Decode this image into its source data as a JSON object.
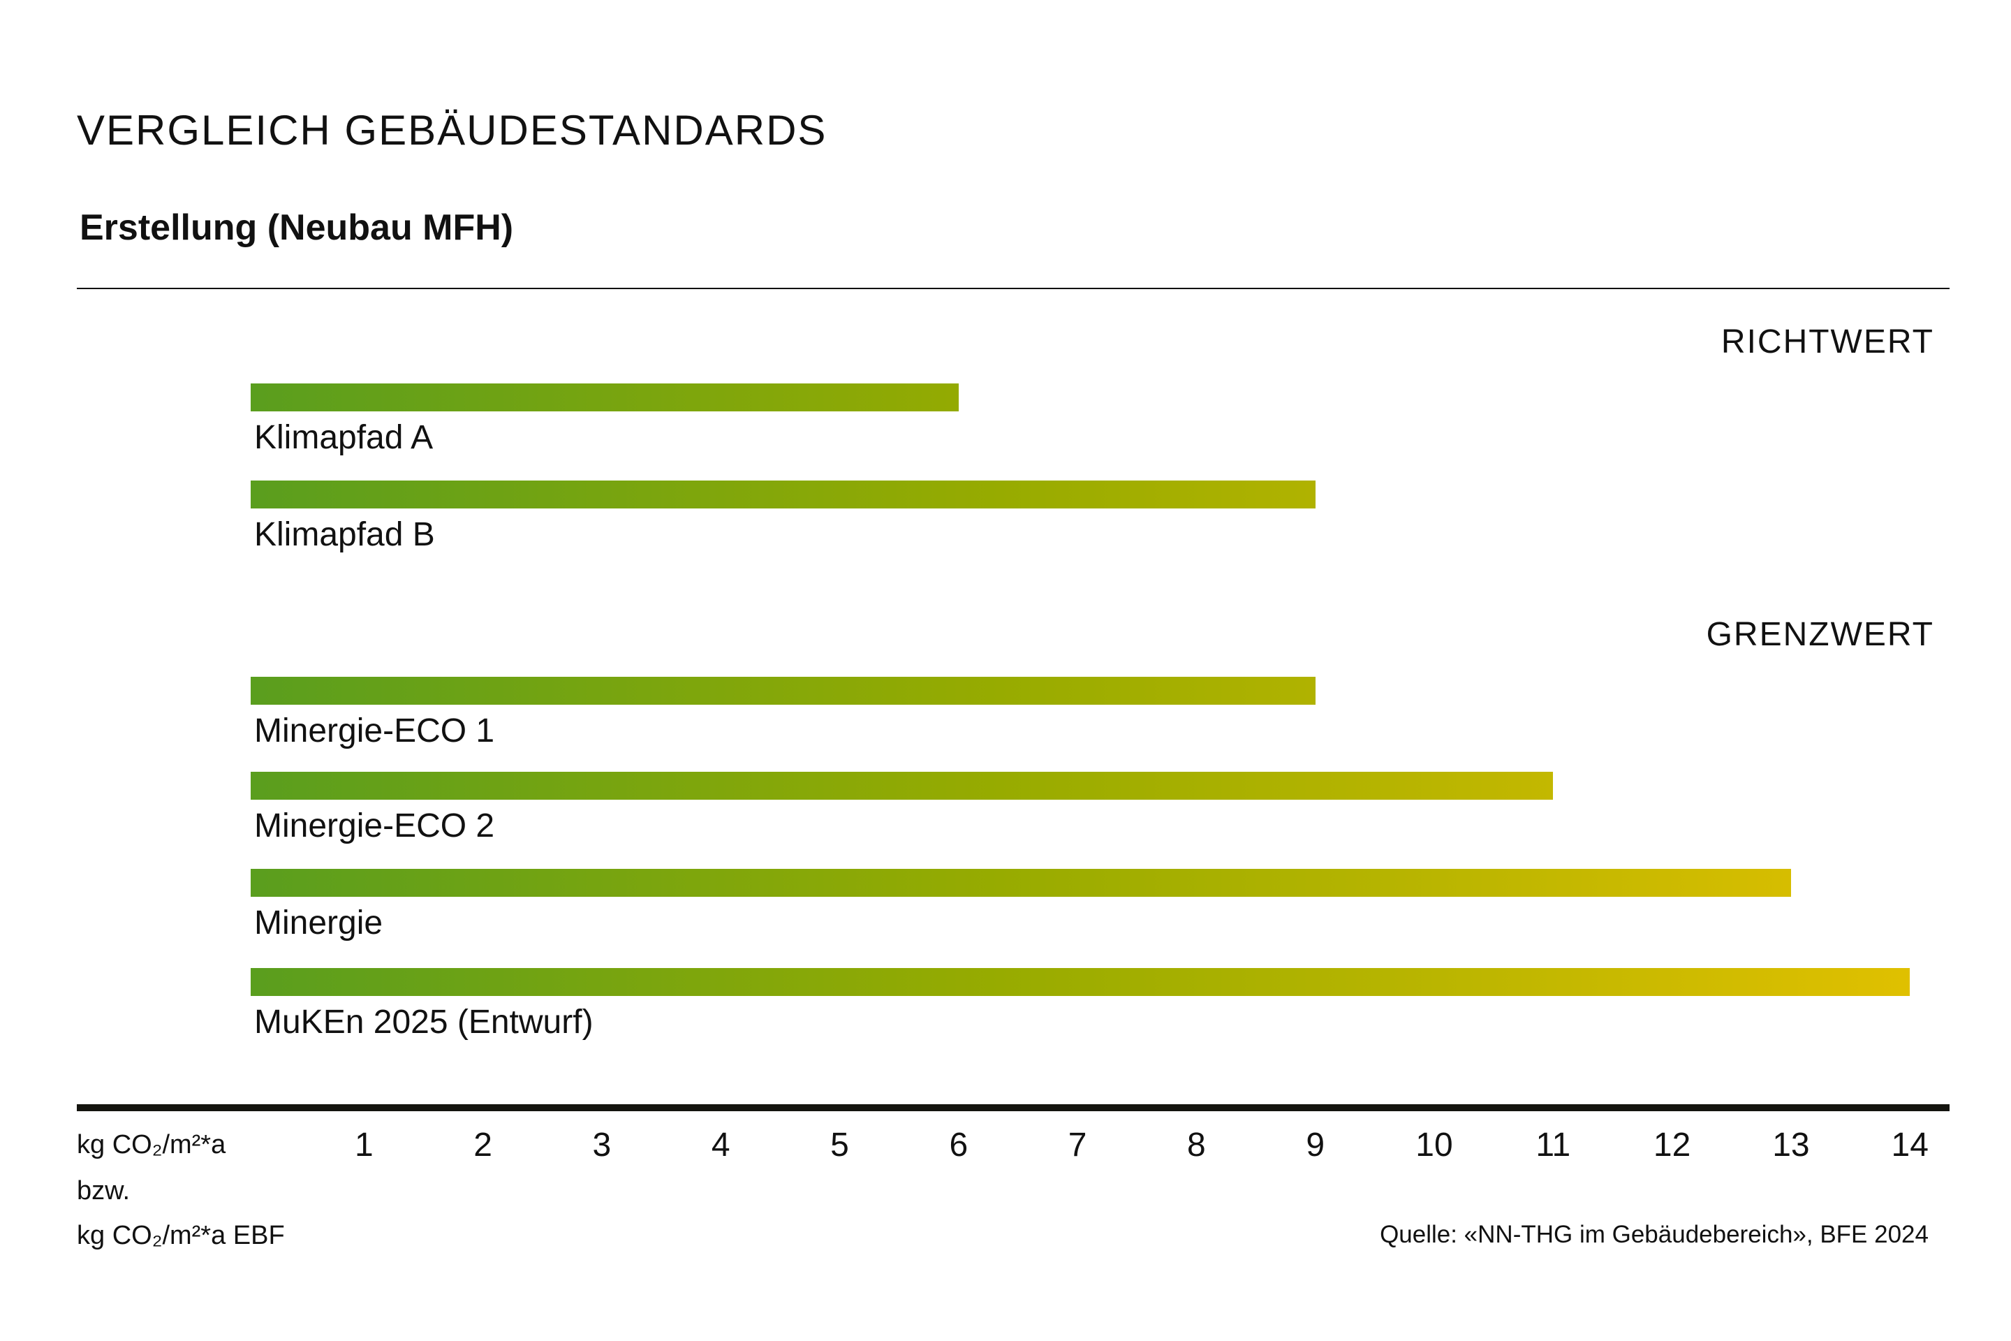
{
  "chart_data": {
    "type": "bar",
    "orientation": "horizontal",
    "title": "VERGLEICH GEBÄUDESTANDARDS",
    "subtitle": "Erstellung (Neubau MFH)",
    "groups": [
      {
        "name": "RICHTWERT",
        "categories": [
          "Klimapfad A",
          "Klimapfad B"
        ],
        "values": [
          6,
          9
        ]
      },
      {
        "name": "GRENZWERT",
        "categories": [
          "Minergie-ECO 1",
          "Minergie-ECO 2",
          "Minergie",
          "MuKEn 2025 (Entwurf)"
        ],
        "values": [
          9,
          11,
          13,
          14
        ]
      }
    ],
    "xticks": [
      "1",
      "2",
      "3",
      "4",
      "5",
      "6",
      "7",
      "8",
      "9",
      "10",
      "11",
      "12",
      "13",
      "14"
    ],
    "xlim": [
      0,
      14
    ],
    "xlabel": [
      "kg CO₂/m²*a",
      "bzw.",
      "kg CO₂/m²*a EBF"
    ],
    "source": "Quelle: «NN-THG im Gebäudebereich», BFE 2024",
    "grid": false,
    "colors": {
      "gradient_start": "#5a9e1e",
      "gradient_end": "#e0c000",
      "axis": "#14140f"
    }
  }
}
